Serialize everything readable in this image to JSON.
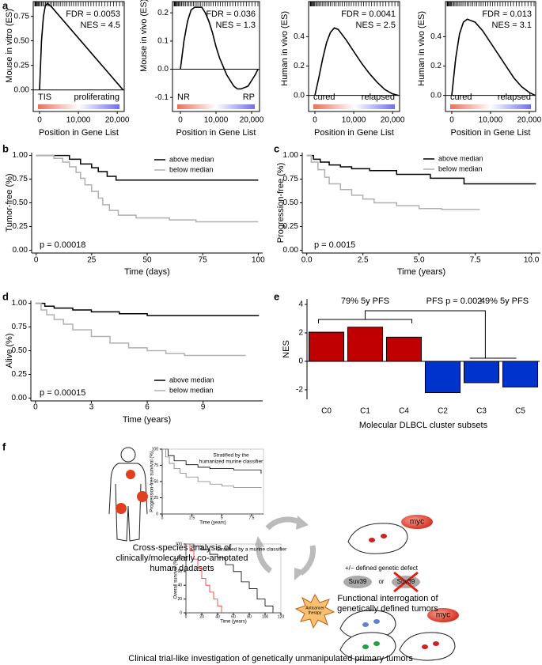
{
  "panel_labels": [
    "a",
    "b",
    "c",
    "d",
    "e",
    "f"
  ],
  "chart_data": [
    {
      "type": "line",
      "ylabel": "Mouse in vitro (ES)",
      "xlabel": "Position in Gene List",
      "fdr": "FDR = 0.0053",
      "nes": "NES = 4.5",
      "left_label": "TIS",
      "right_label": "proliferating",
      "color": "#000000",
      "x": [
        0,
        500,
        1000,
        1500,
        2000,
        3000,
        21500
      ],
      "values": [
        0,
        0.5,
        0.75,
        0.86,
        0.88,
        0.85,
        0
      ],
      "xlim": [
        -1630,
        21800
      ],
      "ylim": [
        -0.22,
        0.9
      ],
      "xticks": [
        0,
        {
          "value": 10000,
          "label": "10,000"
        },
        {
          "value": 20000,
          "label": "20,000"
        }
      ],
      "yticks": [
        {
          "value": 0,
          "label": "0.00"
        },
        {
          "value": 0.25,
          "label": "0.25"
        },
        {
          "value": 0.5,
          "label": "0.50"
        },
        {
          "value": 0.75,
          "label": "0.75"
        }
      ]
    },
    {
      "type": "line",
      "ylabel": "Mouse in vivo (ES)",
      "xlabel": "Position in Gene List",
      "fdr": "FDR = 0.036",
      "nes": "NES = 1.3",
      "left_label": "NR",
      "right_label": "RP",
      "color": "#000000",
      "x": [
        0,
        1000,
        2000,
        3000,
        4000,
        5000,
        6000,
        7000,
        8000,
        9000,
        10000,
        11000,
        12000,
        13000,
        14000,
        15000,
        16000,
        17000,
        18000,
        19000,
        20000,
        21000,
        21800
      ],
      "values": [
        0,
        0.1,
        0.17,
        0.21,
        0.22,
        0.22,
        0.22,
        0.2,
        0.17,
        0.13,
        0.08,
        0.04,
        0.01,
        -0.02,
        -0.04,
        -0.06,
        -0.07,
        -0.07,
        -0.065,
        -0.06,
        -0.04,
        -0.02,
        0
      ],
      "xlim": [
        -2220,
        22220
      ],
      "ylim": [
        -0.15,
        0.24
      ],
      "xticks": [
        0,
        {
          "value": 10000,
          "label": "10,000"
        },
        {
          "value": 20000,
          "label": "20,000"
        }
      ],
      "yticks": [
        -0.1,
        {
          "value": 0,
          "label": "0.0"
        },
        0.1,
        0.2
      ]
    },
    {
      "type": "line",
      "ylabel": "Human in vivo (ES)",
      "xlabel": "Position in Gene List",
      "fdr": "FDR = 0.0041",
      "nes": "NES = 2.5",
      "left_label": "cured",
      "right_label": "relapsed",
      "color": "#000000",
      "x": [
        0,
        1000,
        2000,
        3000,
        4000,
        5000,
        6000,
        8000,
        10000,
        12000,
        14000,
        16000,
        18000,
        20000,
        21500
      ],
      "values": [
        0,
        0.12,
        0.25,
        0.36,
        0.43,
        0.46,
        0.45,
        0.38,
        0.3,
        0.22,
        0.15,
        0.09,
        0.04,
        0.01,
        0
      ],
      "xlim": [
        -1630,
        21800
      ],
      "ylim": [
        -0.11,
        0.64
      ],
      "xticks": [
        0,
        {
          "value": 10000,
          "label": "10,000"
        },
        {
          "value": 20000,
          "label": "20,000"
        }
      ],
      "yticks": [
        {
          "value": 0,
          "label": "0.0"
        },
        0.2,
        0.4
      ]
    },
    {
      "type": "line",
      "ylabel": "Human in vivo (ES)",
      "xlabel": "Position in Gene List",
      "fdr": "FDR = 0.013",
      "nes": "NES = 3.1",
      "left_label": "cured",
      "right_label": "relapsed",
      "color": "#000000",
      "x": [
        0,
        1000,
        2000,
        3000,
        4000,
        5000,
        6000,
        8000,
        10000,
        12000,
        14000,
        16000,
        18000,
        20000,
        21500
      ],
      "values": [
        0,
        0.25,
        0.42,
        0.5,
        0.52,
        0.51,
        0.5,
        0.44,
        0.36,
        0.28,
        0.2,
        0.12,
        0.06,
        0.02,
        0
      ],
      "xlim": [
        -1630,
        21650
      ],
      "ylim": [
        -0.11,
        0.64
      ],
      "xticks": [
        0,
        {
          "value": 10000,
          "label": "10,000"
        },
        {
          "value": 20000,
          "label": "20,000"
        }
      ],
      "yticks": [
        {
          "value": 0,
          "label": "0.0"
        },
        0.2,
        0.4
      ]
    },
    {
      "type": "km",
      "ylabel": "Tumor-free (%)",
      "xlabel": "Time (days)",
      "p_value": "p = 0.00018",
      "series": [
        {
          "name": "above median",
          "color": "#000000",
          "x": [
            0,
            15,
            20,
            25,
            28,
            32,
            36,
            100
          ],
          "values": [
            1,
            0.96,
            0.91,
            0.87,
            0.83,
            0.78,
            0.74,
            0.74
          ]
        },
        {
          "name": "below median",
          "color": "#b0b0b0",
          "x": [
            0,
            8,
            12,
            15,
            18,
            20,
            22,
            25,
            28,
            30,
            33,
            37,
            45,
            60,
            72,
            100
          ],
          "values": [
            1,
            0.97,
            0.93,
            0.88,
            0.82,
            0.76,
            0.69,
            0.62,
            0.55,
            0.48,
            0.42,
            0.37,
            0.34,
            0.32,
            0.3,
            0.3
          ]
        }
      ],
      "xlim": [
        -2,
        102
      ],
      "ylim": [
        -0.03,
        1.03
      ],
      "xticks": [
        0,
        25,
        50,
        75,
        100
      ],
      "yticks": [
        {
          "value": 0,
          "label": "0.00"
        },
        {
          "value": 0.25,
          "label": "0.25"
        },
        {
          "value": 0.5,
          "label": "0.50"
        },
        {
          "value": 0.75,
          "label": "0.75"
        },
        {
          "value": 1,
          "label": "1.00"
        }
      ]
    },
    {
      "type": "km",
      "ylabel": "Progression-free (%)",
      "xlabel": "Time (years)",
      "p_value": "p = 0.0015",
      "series": [
        {
          "name": "above median",
          "color": "#000000",
          "x": [
            0,
            0.3,
            0.6,
            1,
            1.5,
            2,
            2.8,
            4,
            5.5,
            7,
            10.2
          ],
          "values": [
            1,
            0.96,
            0.93,
            0.9,
            0.88,
            0.86,
            0.84,
            0.8,
            0.76,
            0.7,
            0.7
          ]
        },
        {
          "name": "below median",
          "color": "#b0b0b0",
          "x": [
            0,
            0.2,
            0.5,
            0.8,
            1,
            1.5,
            2,
            2.5,
            3,
            4,
            5,
            6,
            7.7
          ],
          "values": [
            1,
            0.93,
            0.85,
            0.77,
            0.7,
            0.64,
            0.58,
            0.54,
            0.5,
            0.47,
            0.44,
            0.43,
            0.43
          ]
        }
      ],
      "xlim": [
        -0.2,
        10.4
      ],
      "ylim": [
        -0.03,
        1.03
      ],
      "xticks": [
        {
          "value": 0,
          "label": "0.0"
        },
        2.5,
        {
          "value": 5,
          "label": "5.0"
        },
        7.5,
        {
          "value": 10,
          "label": "10.0"
        }
      ],
      "yticks": [
        {
          "value": 0,
          "label": "0.00"
        },
        {
          "value": 0.25,
          "label": "0.25"
        },
        {
          "value": 0.5,
          "label": "0.50"
        },
        {
          "value": 0.75,
          "label": "0.75"
        },
        {
          "value": 1,
          "label": "1.00"
        }
      ]
    },
    {
      "type": "km",
      "ylabel": "Alive (%)",
      "xlabel": "Time (years)",
      "p_value": "p = 0.00015",
      "series": [
        {
          "name": "above median",
          "color": "#000000",
          "x": [
            0,
            0.5,
            1,
            2,
            3,
            4.5,
            6,
            12
          ],
          "values": [
            1,
            0.97,
            0.95,
            0.93,
            0.91,
            0.89,
            0.87,
            0.87
          ]
        },
        {
          "name": "below median",
          "color": "#b0b0b0",
          "x": [
            0,
            0.3,
            0.6,
            1,
            1.5,
            2,
            3,
            4,
            5,
            6,
            7,
            8,
            11.3
          ],
          "values": [
            1,
            0.93,
            0.88,
            0.83,
            0.78,
            0.72,
            0.65,
            0.58,
            0.53,
            0.5,
            0.47,
            0.45,
            0.45
          ]
        }
      ],
      "xlim": [
        -0.25,
        12.2
      ],
      "ylim": [
        -0.03,
        1.03
      ],
      "xticks": [
        0,
        3,
        6,
        9
      ],
      "yticks": [
        {
          "value": 0,
          "label": "0.00"
        },
        {
          "value": 0.25,
          "label": "0.25"
        },
        {
          "value": 0.5,
          "label": "0.50"
        },
        {
          "value": 0.75,
          "label": "0.75"
        },
        {
          "value": 1,
          "label": "1.00"
        }
      ]
    },
    {
      "type": "bar",
      "ylabel": "NES",
      "xlabel": "Molecular DLBCL cluster subsets",
      "categories": [
        "C0",
        "C1",
        "C4",
        "C2",
        "C3",
        "C5"
      ],
      "values": [
        2.05,
        2.4,
        1.7,
        -2.2,
        -1.5,
        -1.8
      ],
      "colors": [
        "#c00000",
        "#c00000",
        "#c00000",
        "#0033cc",
        "#0033cc",
        "#0033cc"
      ],
      "ylim": [
        -2.67,
        4.39
      ],
      "yticks": [
        -2,
        0,
        2,
        4
      ],
      "annotations": [
        "79% 5y PFS",
        "PFS p = 0.002",
        "49% 5y PFS"
      ]
    },
    {
      "type": "km",
      "title": [
        "Stratified by the",
        "humanized murine classifier"
      ],
      "ylabel": "Progression-free survival (%)",
      "xlabel": "Time (years)",
      "series": [
        {
          "color": "#000000",
          "x": [
            0,
            0.5,
            1,
            2,
            3,
            4,
            6,
            8.3
          ],
          "values": [
            100,
            90,
            82,
            76,
            72,
            70,
            68,
            62
          ]
        },
        {
          "color": "#808080",
          "x": [
            0,
            0.3,
            0.6,
            1,
            1.5,
            2,
            3,
            4,
            5,
            6,
            8.3
          ],
          "values": [
            100,
            88,
            78,
            70,
            63,
            57,
            50,
            46,
            43,
            41,
            40
          ]
        }
      ],
      "xlim": [
        0,
        8.5
      ],
      "ylim": [
        0,
        100
      ],
      "xticks": [
        0,
        2.5,
        5,
        7.5
      ],
      "yticks": [
        0,
        25,
        50,
        75,
        100
      ]
    },
    {
      "type": "km",
      "title": [
        "Stratified by a murine classifier"
      ],
      "ylabel": "Overall survival (%)",
      "xlabel": "Time (years)",
      "series": [
        {
          "color": "#000000",
          "x": [
            0,
            10,
            20,
            30,
            40,
            50,
            60,
            70,
            80,
            90,
            100,
            110
          ],
          "values": [
            100,
            97,
            92,
            85,
            80,
            70,
            60,
            45,
            35,
            20,
            10,
            0
          ]
        },
        {
          "color": "#e03030",
          "x": [
            0,
            5,
            10,
            15,
            20,
            25,
            30,
            35,
            40,
            45
          ],
          "values": [
            100,
            90,
            78,
            65,
            50,
            40,
            30,
            20,
            10,
            0
          ]
        }
      ],
      "xlim": [
        0,
        120
      ],
      "ylim": [
        0,
        100
      ],
      "xticks": [
        0,
        20,
        40,
        60,
        80,
        100,
        120
      ],
      "yticks": [
        0,
        20,
        40,
        60,
        80,
        100
      ]
    }
  ],
  "diagram": {
    "left_caption": [
      "Cross-species analysis of",
      "clinically/molecularly co-annotated",
      "human dadasets"
    ],
    "right_caption": [
      "Functional interrogation of",
      "genetically defined tumors"
    ],
    "bottom_caption": "Clinical trial-like investigation of genetically unmanipulated primary tumors",
    "myc_top": "myc",
    "myc_bottom": "myc",
    "defect": "+/− defined genetic defect",
    "suv39_a": "Suv39",
    "or": "or",
    "suv39_b": "Suv39",
    "therapy": [
      "Anticancer",
      "therapy"
    ]
  }
}
